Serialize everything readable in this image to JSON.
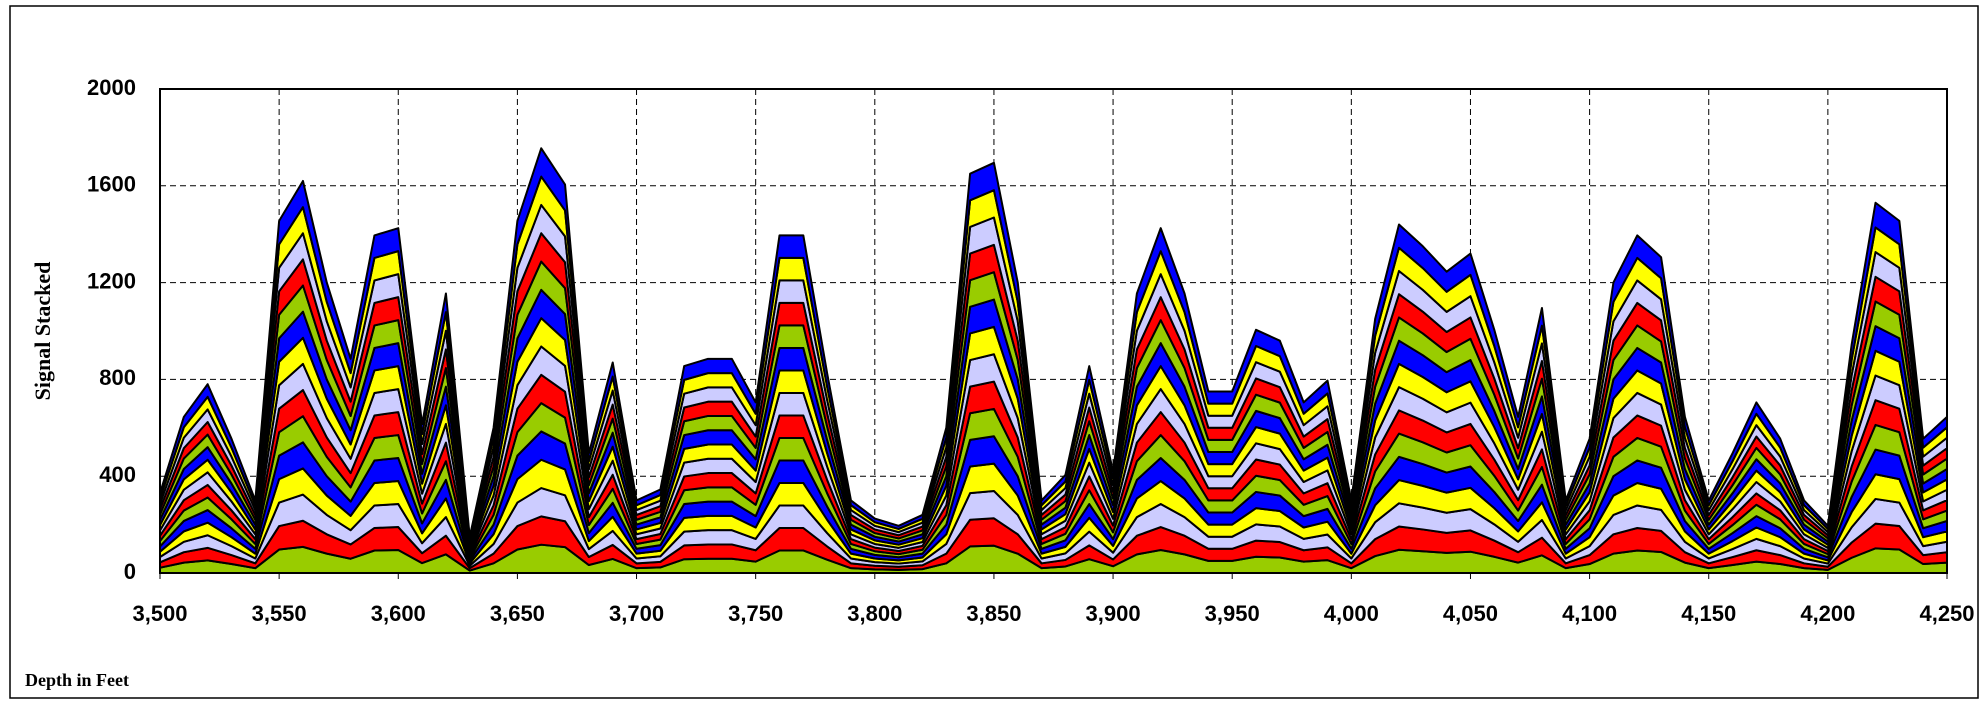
{
  "chart_data": {
    "type": "stacked-area",
    "ylabel": "Signal Stacked",
    "xlabel": "Depth in Feet",
    "xlim": [
      3500,
      4250
    ],
    "ylim": [
      0,
      2000
    ],
    "yticks": [
      0,
      400,
      800,
      1200,
      1600,
      2000
    ],
    "xticks": [
      {
        "value": 3500,
        "label": "3,500"
      },
      {
        "value": 3550,
        "label": "3,550"
      },
      {
        "value": 3600,
        "label": "3,600"
      },
      {
        "value": 3650,
        "label": "3,650"
      },
      {
        "value": 3700,
        "label": "3,700"
      },
      {
        "value": 3750,
        "label": "3,750"
      },
      {
        "value": 3800,
        "label": "3,800"
      },
      {
        "value": 3850,
        "label": "3,850"
      },
      {
        "value": 3900,
        "label": "3,900"
      },
      {
        "value": 3950,
        "label": "3,950"
      },
      {
        "value": 4000,
        "label": "4,000"
      },
      {
        "value": 4050,
        "label": "4,050"
      },
      {
        "value": 4100,
        "label": "4,100"
      },
      {
        "value": 4150,
        "label": "4,150"
      },
      {
        "value": 4200,
        "label": "4,200"
      },
      {
        "value": 4250,
        "label": "4,250"
      }
    ],
    "grid": true,
    "x": [
      3500,
      3510,
      3520,
      3530,
      3540,
      3550,
      3560,
      3570,
      3580,
      3590,
      3600,
      3610,
      3620,
      3630,
      3640,
      3650,
      3660,
      3670,
      3680,
      3690,
      3700,
      3710,
      3720,
      3730,
      3740,
      3750,
      3760,
      3770,
      3780,
      3790,
      3800,
      3810,
      3820,
      3830,
      3840,
      3850,
      3860,
      3870,
      3880,
      3890,
      3900,
      3910,
      3920,
      3930,
      3940,
      3950,
      3960,
      3970,
      3980,
      3990,
      4000,
      4010,
      4020,
      4030,
      4040,
      4050,
      4060,
      4070,
      4080,
      4090,
      4100,
      4110,
      4120,
      4130,
      4140,
      4150,
      4160,
      4170,
      4180,
      4190,
      4200,
      4210,
      4220,
      4230,
      4240,
      4250
    ],
    "series": [
      {
        "color": "#99cc00",
        "values": [
          22,
          43,
          52,
          37,
          20,
          97,
          108,
          80,
          59,
          93,
          95,
          41,
          77,
          10,
          40,
          97,
          117,
          107,
          33,
          58,
          20,
          23,
          57,
          59,
          59,
          47,
          93,
          93,
          55,
          20,
          15,
          13,
          16,
          40,
          110,
          113,
          80,
          20,
          27,
          57,
          28,
          77,
          95,
          77,
          50,
          50,
          67,
          64,
          47,
          53,
          20,
          70,
          96,
          90,
          83,
          88,
          67,
          43,
          73,
          20,
          37,
          80,
          93,
          87,
          43,
          20,
          33,
          47,
          37,
          20,
          13,
          63,
          102,
          97,
          37,
          43
        ]
      },
      {
        "color": "#ff0000",
        "values": [
          22,
          43,
          52,
          37,
          20,
          97,
          108,
          80,
          59,
          93,
          95,
          41,
          77,
          10,
          40,
          97,
          117,
          107,
          33,
          58,
          20,
          23,
          57,
          59,
          59,
          47,
          93,
          93,
          55,
          20,
          15,
          13,
          16,
          40,
          110,
          113,
          80,
          20,
          27,
          57,
          28,
          77,
          95,
          77,
          50,
          50,
          67,
          64,
          47,
          53,
          20,
          70,
          96,
          90,
          83,
          88,
          67,
          43,
          73,
          20,
          37,
          80,
          93,
          87,
          43,
          20,
          33,
          47,
          37,
          20,
          13,
          63,
          102,
          97,
          37,
          43
        ]
      },
      {
        "color": "#ccccff",
        "values": [
          22,
          43,
          52,
          37,
          20,
          97,
          108,
          80,
          59,
          93,
          95,
          41,
          77,
          10,
          40,
          97,
          117,
          107,
          33,
          58,
          20,
          23,
          57,
          59,
          59,
          47,
          93,
          93,
          55,
          20,
          15,
          13,
          16,
          40,
          110,
          113,
          80,
          20,
          27,
          57,
          28,
          77,
          95,
          77,
          50,
          50,
          67,
          64,
          47,
          53,
          20,
          70,
          96,
          90,
          83,
          88,
          67,
          43,
          73,
          20,
          37,
          80,
          93,
          87,
          43,
          20,
          33,
          47,
          37,
          20,
          13,
          63,
          102,
          97,
          37,
          43
        ]
      },
      {
        "color": "#ffff00",
        "values": [
          22,
          43,
          52,
          37,
          20,
          97,
          108,
          80,
          59,
          93,
          95,
          41,
          77,
          10,
          40,
          97,
          117,
          107,
          33,
          58,
          20,
          23,
          57,
          59,
          59,
          47,
          93,
          93,
          55,
          20,
          15,
          13,
          16,
          40,
          110,
          113,
          80,
          20,
          27,
          57,
          28,
          77,
          95,
          77,
          50,
          50,
          67,
          64,
          47,
          53,
          20,
          70,
          96,
          90,
          83,
          88,
          67,
          43,
          73,
          20,
          37,
          80,
          93,
          87,
          43,
          20,
          33,
          47,
          37,
          20,
          13,
          63,
          102,
          97,
          37,
          43
        ]
      },
      {
        "color": "#0000ff",
        "values": [
          22,
          43,
          52,
          37,
          20,
          97,
          108,
          80,
          59,
          93,
          95,
          41,
          77,
          10,
          40,
          97,
          117,
          107,
          33,
          58,
          20,
          23,
          57,
          59,
          59,
          47,
          93,
          93,
          55,
          20,
          15,
          13,
          16,
          40,
          110,
          113,
          80,
          20,
          27,
          57,
          28,
          77,
          95,
          77,
          50,
          50,
          67,
          64,
          47,
          53,
          20,
          70,
          96,
          90,
          83,
          88,
          67,
          43,
          73,
          20,
          37,
          80,
          93,
          87,
          43,
          20,
          33,
          47,
          37,
          20,
          13,
          63,
          102,
          97,
          37,
          43
        ]
      },
      {
        "color": "#99cc00",
        "values": [
          22,
          43,
          52,
          37,
          20,
          97,
          108,
          80,
          59,
          93,
          95,
          41,
          77,
          10,
          40,
          97,
          117,
          107,
          33,
          58,
          20,
          23,
          57,
          59,
          59,
          47,
          93,
          93,
          55,
          20,
          15,
          13,
          16,
          40,
          110,
          113,
          80,
          20,
          27,
          57,
          28,
          77,
          95,
          77,
          50,
          50,
          67,
          64,
          47,
          53,
          20,
          70,
          96,
          90,
          83,
          88,
          67,
          43,
          73,
          20,
          37,
          80,
          93,
          87,
          43,
          20,
          33,
          47,
          37,
          20,
          13,
          63,
          102,
          97,
          37,
          43
        ]
      },
      {
        "color": "#ff0000",
        "values": [
          22,
          43,
          52,
          37,
          20,
          97,
          108,
          80,
          59,
          93,
          95,
          41,
          77,
          10,
          40,
          97,
          117,
          107,
          33,
          58,
          20,
          23,
          57,
          59,
          59,
          47,
          93,
          93,
          55,
          20,
          15,
          13,
          16,
          40,
          110,
          113,
          80,
          20,
          27,
          57,
          28,
          77,
          95,
          77,
          50,
          50,
          67,
          64,
          47,
          53,
          20,
          70,
          96,
          90,
          83,
          88,
          67,
          43,
          73,
          20,
          37,
          80,
          93,
          87,
          43,
          20,
          33,
          47,
          37,
          20,
          13,
          63,
          102,
          97,
          37,
          43
        ]
      },
      {
        "color": "#ccccff",
        "values": [
          22,
          43,
          52,
          37,
          20,
          97,
          108,
          80,
          59,
          93,
          95,
          41,
          77,
          10,
          40,
          97,
          117,
          107,
          33,
          58,
          20,
          23,
          57,
          59,
          59,
          47,
          93,
          93,
          55,
          20,
          15,
          13,
          16,
          40,
          110,
          113,
          80,
          20,
          27,
          57,
          28,
          77,
          95,
          77,
          50,
          50,
          67,
          64,
          47,
          53,
          20,
          70,
          96,
          90,
          83,
          88,
          67,
          43,
          73,
          20,
          37,
          80,
          93,
          87,
          43,
          20,
          33,
          47,
          37,
          20,
          13,
          63,
          102,
          97,
          37,
          43
        ]
      },
      {
        "color": "#ffff00",
        "values": [
          22,
          43,
          52,
          37,
          20,
          97,
          108,
          80,
          59,
          93,
          95,
          41,
          77,
          10,
          40,
          97,
          117,
          107,
          33,
          58,
          20,
          23,
          57,
          59,
          59,
          47,
          93,
          93,
          55,
          20,
          15,
          13,
          16,
          40,
          110,
          113,
          80,
          20,
          27,
          57,
          28,
          77,
          95,
          77,
          50,
          50,
          67,
          64,
          47,
          53,
          20,
          70,
          96,
          90,
          83,
          88,
          67,
          43,
          73,
          20,
          37,
          80,
          93,
          87,
          43,
          20,
          33,
          47,
          37,
          20,
          13,
          63,
          102,
          97,
          37,
          43
        ]
      },
      {
        "color": "#0000ff",
        "values": [
          22,
          43,
          52,
          37,
          20,
          97,
          108,
          80,
          59,
          93,
          95,
          41,
          77,
          10,
          40,
          97,
          117,
          107,
          33,
          58,
          20,
          23,
          57,
          59,
          59,
          47,
          93,
          93,
          55,
          20,
          15,
          13,
          16,
          40,
          110,
          113,
          80,
          20,
          27,
          57,
          28,
          77,
          95,
          77,
          50,
          50,
          67,
          64,
          47,
          53,
          20,
          70,
          96,
          90,
          83,
          88,
          67,
          43,
          73,
          20,
          37,
          80,
          93,
          87,
          43,
          20,
          33,
          47,
          37,
          20,
          13,
          63,
          102,
          97,
          37,
          43
        ]
      },
      {
        "color": "#99cc00",
        "values": [
          22,
          43,
          52,
          37,
          20,
          97,
          108,
          80,
          59,
          93,
          95,
          41,
          77,
          10,
          40,
          97,
          117,
          107,
          33,
          58,
          20,
          23,
          57,
          59,
          59,
          47,
          93,
          93,
          55,
          20,
          15,
          13,
          16,
          40,
          110,
          113,
          80,
          20,
          27,
          57,
          28,
          77,
          95,
          77,
          50,
          50,
          67,
          64,
          47,
          53,
          20,
          70,
          96,
          90,
          83,
          88,
          67,
          43,
          73,
          20,
          37,
          80,
          93,
          87,
          43,
          20,
          33,
          47,
          37,
          20,
          13,
          63,
          102,
          97,
          37,
          43
        ]
      },
      {
        "color": "#ff0000",
        "values": [
          22,
          43,
          52,
          37,
          20,
          97,
          108,
          80,
          59,
          93,
          95,
          41,
          77,
          10,
          40,
          97,
          117,
          107,
          33,
          58,
          20,
          23,
          57,
          59,
          59,
          47,
          93,
          93,
          55,
          20,
          15,
          13,
          16,
          40,
          110,
          113,
          80,
          20,
          27,
          57,
          28,
          77,
          95,
          77,
          50,
          50,
          67,
          64,
          47,
          53,
          20,
          70,
          96,
          90,
          83,
          88,
          67,
          43,
          73,
          20,
          37,
          80,
          93,
          87,
          43,
          20,
          33,
          47,
          37,
          20,
          13,
          63,
          102,
          97,
          37,
          43
        ]
      },
      {
        "color": "#ccccff",
        "values": [
          22,
          43,
          52,
          37,
          20,
          97,
          108,
          80,
          59,
          93,
          95,
          41,
          77,
          10,
          40,
          97,
          117,
          107,
          33,
          58,
          20,
          23,
          57,
          59,
          59,
          47,
          93,
          93,
          55,
          20,
          15,
          13,
          16,
          40,
          110,
          113,
          80,
          20,
          27,
          57,
          28,
          77,
          95,
          77,
          50,
          50,
          67,
          64,
          47,
          53,
          20,
          70,
          96,
          90,
          83,
          88,
          67,
          43,
          73,
          20,
          37,
          80,
          93,
          87,
          43,
          20,
          33,
          47,
          37,
          20,
          13,
          63,
          102,
          97,
          37,
          43
        ]
      },
      {
        "color": "#ffff00",
        "values": [
          22,
          43,
          52,
          37,
          20,
          97,
          108,
          80,
          59,
          93,
          95,
          41,
          77,
          10,
          40,
          97,
          117,
          107,
          33,
          58,
          20,
          23,
          57,
          59,
          59,
          47,
          93,
          93,
          55,
          20,
          15,
          13,
          16,
          40,
          110,
          113,
          80,
          20,
          27,
          57,
          28,
          77,
          95,
          77,
          50,
          50,
          67,
          64,
          47,
          53,
          20,
          70,
          96,
          90,
          83,
          88,
          67,
          43,
          73,
          20,
          37,
          80,
          93,
          87,
          43,
          20,
          33,
          47,
          37,
          20,
          13,
          63,
          102,
          97,
          37,
          43
        ]
      },
      {
        "color": "#0000ff",
        "values": [
          22,
          43,
          52,
          37,
          20,
          97,
          108,
          80,
          59,
          93,
          95,
          41,
          77,
          10,
          40,
          97,
          117,
          107,
          33,
          58,
          20,
          23,
          57,
          59,
          59,
          47,
          93,
          93,
          55,
          20,
          15,
          13,
          16,
          40,
          110,
          113,
          80,
          20,
          27,
          57,
          28,
          77,
          95,
          77,
          50,
          50,
          67,
          64,
          47,
          53,
          20,
          70,
          96,
          90,
          83,
          88,
          67,
          43,
          73,
          20,
          37,
          80,
          93,
          87,
          43,
          20,
          33,
          47,
          37,
          20,
          13,
          63,
          102,
          97,
          37,
          43
        ]
      }
    ]
  }
}
